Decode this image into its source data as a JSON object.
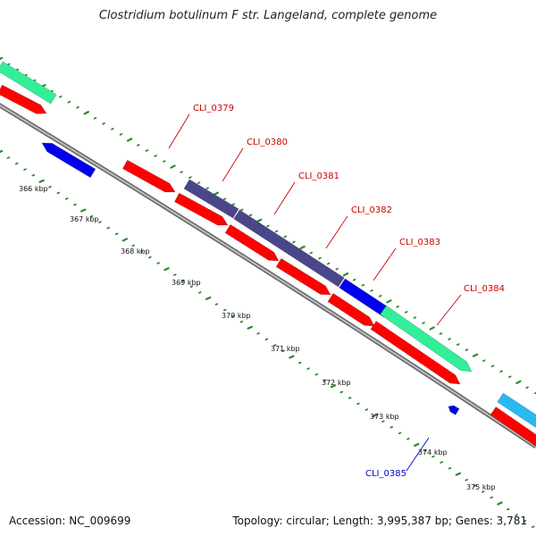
{
  "title": "Clostridium botulinum F str. Langeland, complete genome",
  "footer": {
    "accession": "Accession: NC_009699",
    "summary": "Topology: circular; Length: 3,995,387 bp; Genes: 3,781"
  },
  "colors": {
    "forward_cds": "#ff0000",
    "reverse_cds": "#0000ee",
    "slate": "#4a468a",
    "green": "#33ee99",
    "sky": "#2ab8f0",
    "backbone": "#888888",
    "tick": "#2a8a2a",
    "callout_red": "#cc0000",
    "callout_blue": "#0000cc"
  },
  "scale": {
    "ticks": [
      {
        "label": "366 kbp"
      },
      {
        "label": "367 kbp"
      },
      {
        "label": "368 kbp"
      },
      {
        "label": "369 kbp"
      },
      {
        "label": "370 kbp"
      },
      {
        "label": "371 kbp"
      },
      {
        "label": "372 kbp"
      },
      {
        "label": "373 kbp"
      },
      {
        "label": "374 kbp"
      },
      {
        "label": "375 kbp"
      }
    ]
  },
  "labels": [
    {
      "text": "CLI_0379"
    },
    {
      "text": "CLI_0380"
    },
    {
      "text": "CLI_0381"
    },
    {
      "text": "CLI_0382"
    },
    {
      "text": "CLI_0383"
    },
    {
      "text": "CLI_0384"
    },
    {
      "text": "CLI_0385"
    }
  ]
}
